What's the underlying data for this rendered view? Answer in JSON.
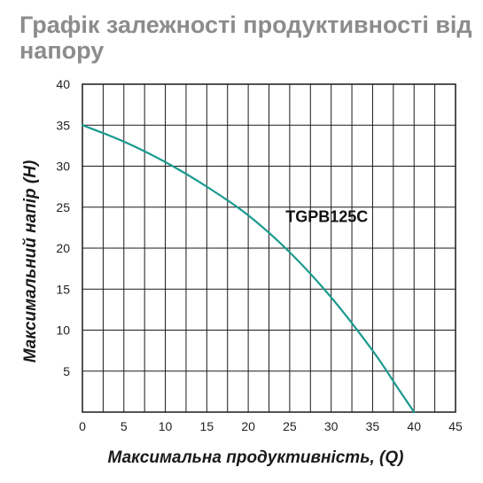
{
  "chart_data": {
    "type": "line",
    "title_lines": [
      "Графік залежності продуктивності від",
      "напору"
    ],
    "xlabel": "Максимальна продуктивність, (Q)",
    "ylabel": "Максимальний напір (H)",
    "xlim": [
      0,
      45
    ],
    "ylim": [
      0,
      40
    ],
    "xticks": [
      0,
      5,
      10,
      15,
      20,
      25,
      30,
      35,
      40,
      45
    ],
    "yticks": [
      5,
      10,
      15,
      20,
      25,
      30,
      35,
      40
    ],
    "x_grid_step": 2.5,
    "y_grid_step": 5,
    "grid": true,
    "series": [
      {
        "name": "TGPB125C",
        "color": "#1a9a8e",
        "x": [
          0,
          5,
          10,
          15,
          20,
          25,
          30,
          35,
          38,
          40
        ],
        "y": [
          35,
          33,
          30.5,
          27.5,
          24,
          19.5,
          14,
          7.5,
          3,
          0
        ]
      }
    ]
  }
}
